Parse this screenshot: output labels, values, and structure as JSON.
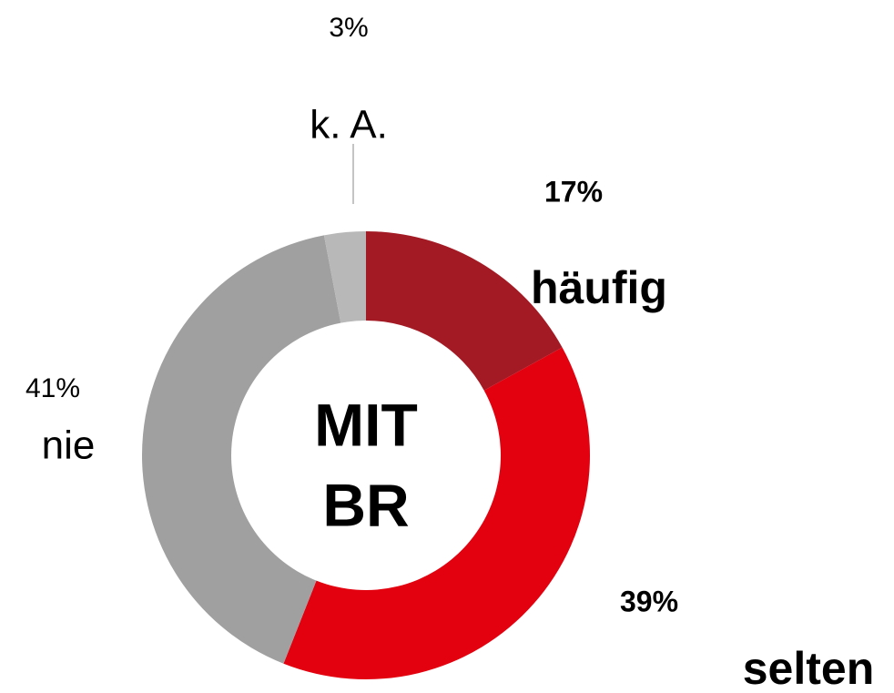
{
  "chart_data": {
    "type": "donut",
    "center_label": [
      "MIT",
      "BR"
    ],
    "categories": [
      "häufig",
      "selten",
      "nie",
      "k. A."
    ],
    "values": [
      17,
      39,
      41,
      3
    ],
    "value_labels": [
      "17%",
      "39%",
      "41%",
      "3%"
    ],
    "colors": [
      "#a31a24",
      "#e3000f",
      "#a0a0a0",
      "#b8b8b8"
    ]
  }
}
